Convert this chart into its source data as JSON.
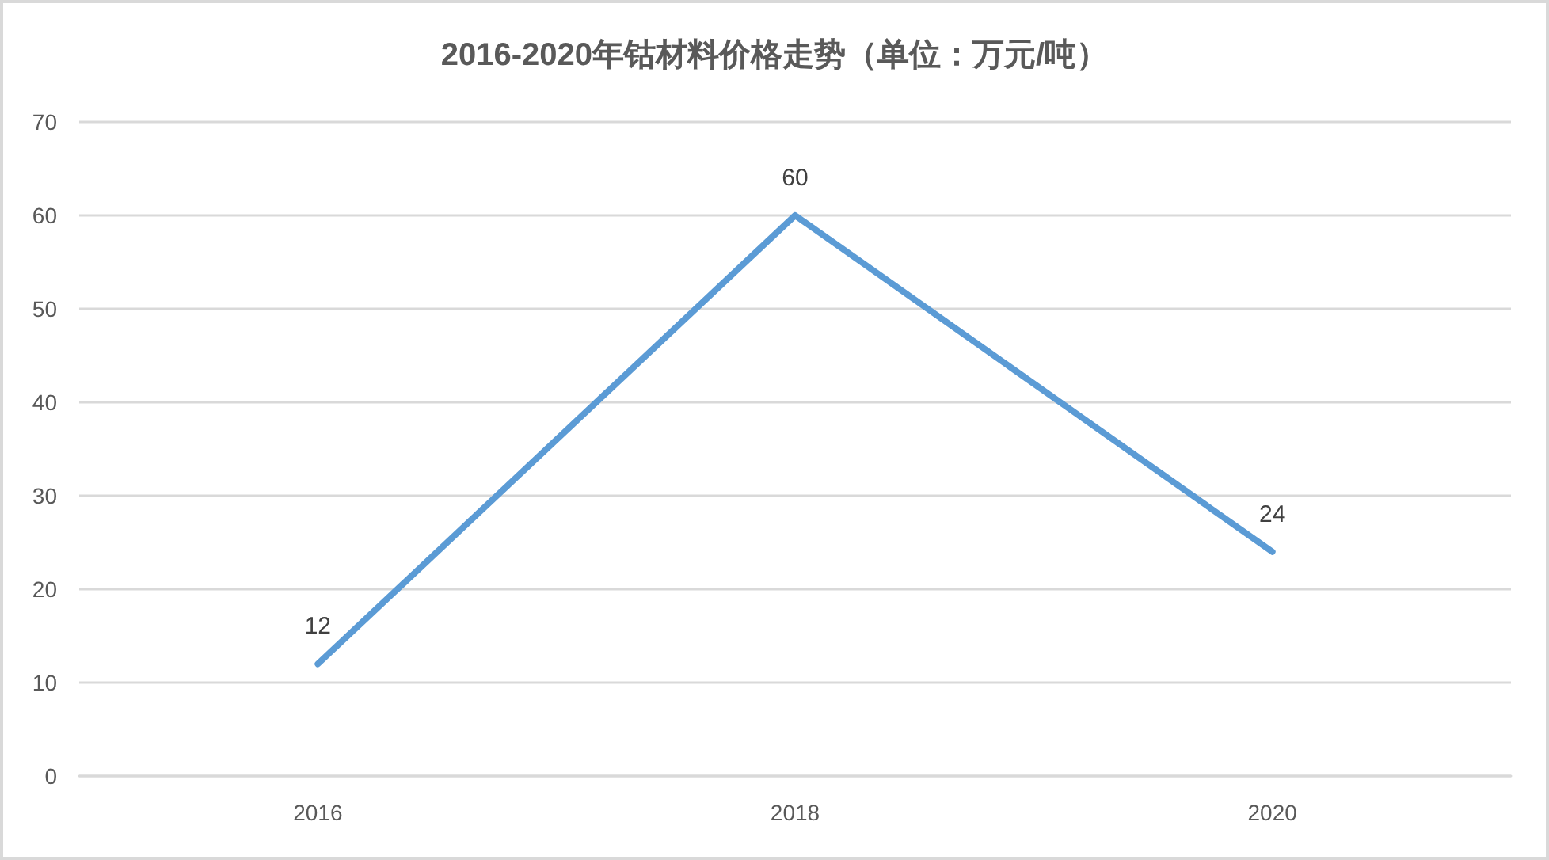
{
  "chart_data": {
    "type": "line",
    "title": "2016-2020年钴材料价格走势（单位：万元/吨）",
    "categories": [
      "2016",
      "2018",
      "2020"
    ],
    "series": [
      {
        "color": "#5b9bd5",
        "values": [
          12,
          60,
          24
        ]
      }
    ],
    "ylim": [
      0,
      70
    ],
    "yticks": [
      0,
      10,
      20,
      30,
      40,
      50,
      60,
      70
    ],
    "grid": "y",
    "data_labels": true,
    "marker": "none",
    "line_style": "solid"
  }
}
